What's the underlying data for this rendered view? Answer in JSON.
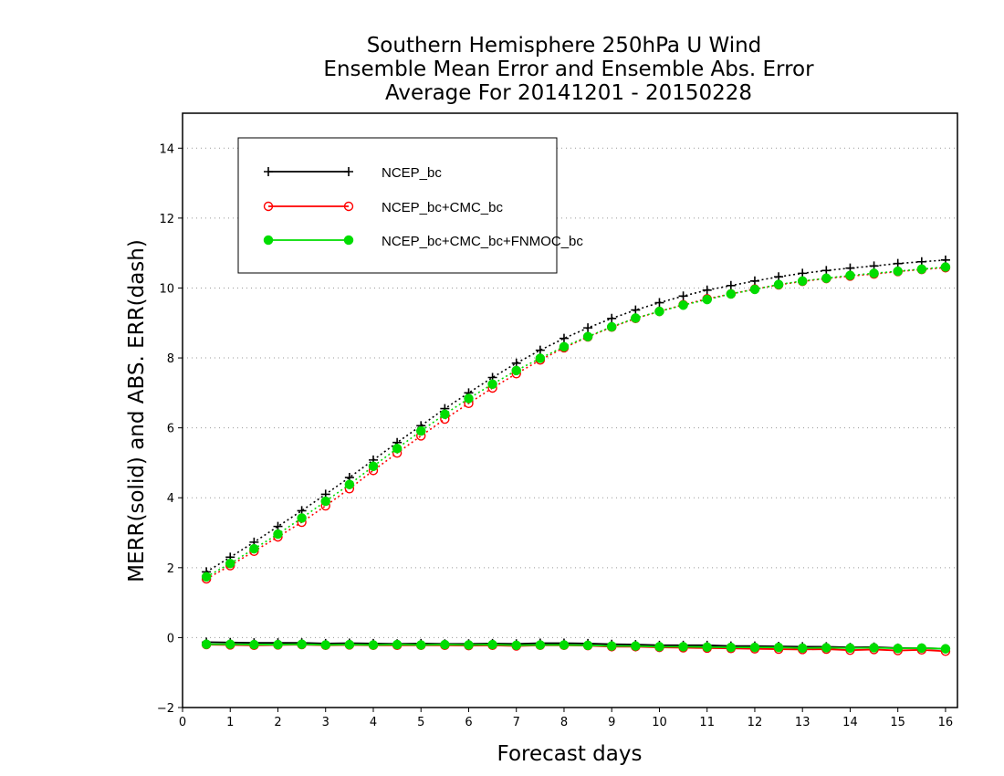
{
  "chart_data": {
    "type": "line",
    "title_lines": [
      "Southern Hemisphere 250hPa U Wind",
      "Ensemble Mean Error and Ensemble Abs. Error",
      "Average For 20141201 - 20150228"
    ],
    "xlabel": "Forecast days",
    "ylabel": "MERR(solid) and ABS. ERR(dash)",
    "xlim": [
      0,
      16.25
    ],
    "ylim": [
      -2,
      15
    ],
    "xticks": [
      0,
      1,
      2,
      3,
      4,
      5,
      6,
      7,
      8,
      9,
      10,
      11,
      12,
      13,
      14,
      15,
      16
    ],
    "yticks": [
      -2,
      0,
      2,
      4,
      6,
      8,
      10,
      12,
      14
    ],
    "grid": "horizontal dotted",
    "legend_position": "top-left",
    "x": [
      0.5,
      1,
      1.5,
      2,
      2.5,
      3,
      3.5,
      4,
      4.5,
      5,
      5.5,
      6,
      6.5,
      7,
      7.5,
      8,
      8.5,
      9,
      9.5,
      10,
      10.5,
      11,
      11.5,
      12,
      12.5,
      13,
      13.5,
      14,
      14.5,
      15,
      15.5,
      16
    ],
    "series": [
      {
        "name": "NCEP_bc",
        "color": "#000000",
        "marker": "plus",
        "abs_err": [
          1.88,
          2.3,
          2.73,
          3.18,
          3.63,
          4.1,
          4.58,
          5.08,
          5.58,
          6.06,
          6.55,
          7.0,
          7.44,
          7.85,
          8.22,
          8.56,
          8.86,
          9.13,
          9.37,
          9.58,
          9.77,
          9.94,
          10.07,
          10.2,
          10.32,
          10.42,
          10.5,
          10.57,
          10.63,
          10.7,
          10.75,
          10.8
        ],
        "mean_err": [
          -0.13,
          -0.14,
          -0.15,
          -0.15,
          -0.15,
          -0.17,
          -0.16,
          -0.17,
          -0.18,
          -0.17,
          -0.18,
          -0.18,
          -0.17,
          -0.18,
          -0.16,
          -0.16,
          -0.17,
          -0.19,
          -0.2,
          -0.22,
          -0.22,
          -0.22,
          -0.24,
          -0.24,
          -0.25,
          -0.26,
          -0.26,
          -0.28,
          -0.27,
          -0.3,
          -0.3,
          -0.32
        ]
      },
      {
        "name": "NCEP_bc+CMC_bc",
        "color": "#ff0000",
        "marker": "open-circle",
        "abs_err": [
          1.68,
          2.06,
          2.47,
          2.88,
          3.3,
          3.77,
          4.26,
          4.78,
          5.28,
          5.77,
          6.25,
          6.7,
          7.14,
          7.55,
          7.94,
          8.29,
          8.6,
          8.88,
          9.13,
          9.33,
          9.52,
          9.69,
          9.83,
          9.97,
          10.09,
          10.19,
          10.27,
          10.34,
          10.4,
          10.47,
          10.53,
          10.58
        ],
        "mean_err": [
          -0.2,
          -0.21,
          -0.22,
          -0.21,
          -0.2,
          -0.22,
          -0.21,
          -0.22,
          -0.22,
          -0.22,
          -0.22,
          -0.23,
          -0.22,
          -0.24,
          -0.22,
          -0.22,
          -0.23,
          -0.26,
          -0.26,
          -0.28,
          -0.29,
          -0.3,
          -0.31,
          -0.32,
          -0.33,
          -0.34,
          -0.33,
          -0.36,
          -0.34,
          -0.37,
          -0.35,
          -0.39
        ]
      },
      {
        "name": "NCEP_bc+CMC_bc+FNMOC_bc",
        "color": "#00dd00",
        "marker": "filled-circle",
        "abs_err": [
          1.74,
          2.12,
          2.54,
          2.96,
          3.42,
          3.9,
          4.38,
          4.9,
          5.41,
          5.91,
          6.39,
          6.84,
          7.25,
          7.64,
          7.99,
          8.32,
          8.61,
          8.89,
          9.14,
          9.33,
          9.51,
          9.67,
          9.83,
          9.96,
          10.1,
          10.2,
          10.28,
          10.36,
          10.42,
          10.48,
          10.54,
          10.6
        ],
        "mean_err": [
          -0.19,
          -0.19,
          -0.2,
          -0.2,
          -0.19,
          -0.21,
          -0.2,
          -0.21,
          -0.2,
          -0.21,
          -0.2,
          -0.21,
          -0.2,
          -0.22,
          -0.21,
          -0.21,
          -0.22,
          -0.24,
          -0.24,
          -0.26,
          -0.26,
          -0.27,
          -0.28,
          -0.28,
          -0.28,
          -0.3,
          -0.29,
          -0.3,
          -0.29,
          -0.31,
          -0.3,
          -0.32
        ]
      }
    ]
  }
}
